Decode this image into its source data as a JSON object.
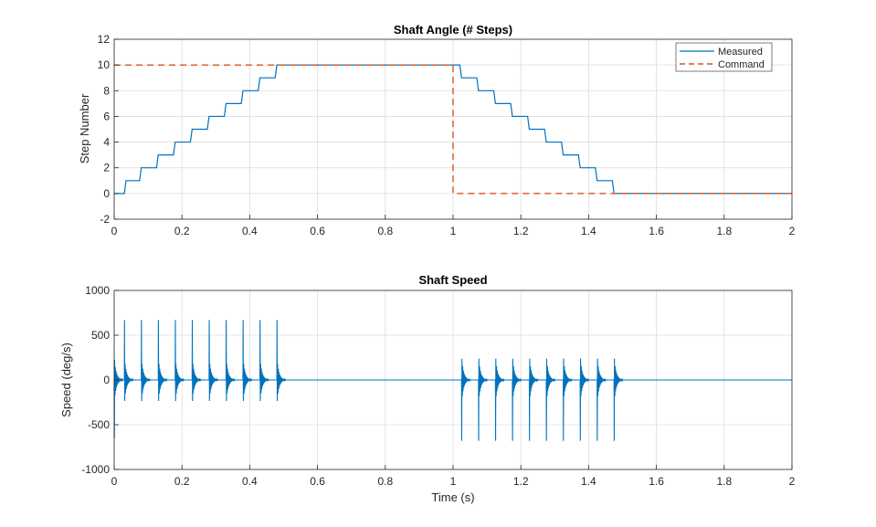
{
  "chart_data": [
    {
      "type": "line",
      "title": "Shaft Angle (# Steps)",
      "xlabel": "",
      "ylabel": "Step Number",
      "xlim": [
        0,
        2
      ],
      "ylim": [
        -2,
        12
      ],
      "xticks": [
        "0",
        "0.2",
        "0.4",
        "0.6",
        "0.8",
        "1",
        "1.2",
        "1.4",
        "1.6",
        "1.8",
        "2"
      ],
      "yticks": [
        "-2",
        "0",
        "2",
        "4",
        "6",
        "8",
        "10",
        "12"
      ],
      "grid": true,
      "legend": "top-right",
      "series": [
        {
          "name": "Measured",
          "color": "#0072BD",
          "style": "solid",
          "x": [
            0,
            0.03,
            0.035,
            0.075,
            0.08,
            0.125,
            0.13,
            0.175,
            0.18,
            0.225,
            0.23,
            0.275,
            0.28,
            0.325,
            0.33,
            0.375,
            0.38,
            0.425,
            0.43,
            0.475,
            0.48,
            1.0,
            1.02,
            1.025,
            1.07,
            1.075,
            1.12,
            1.125,
            1.17,
            1.175,
            1.22,
            1.225,
            1.27,
            1.275,
            1.32,
            1.325,
            1.37,
            1.375,
            1.42,
            1.425,
            1.47,
            1.475,
            2.0
          ],
          "y": [
            0,
            0,
            1,
            1,
            2,
            2,
            3,
            3,
            4,
            4,
            5,
            5,
            6,
            6,
            7,
            7,
            8,
            8,
            9,
            9,
            10,
            10,
            10,
            9,
            9,
            8,
            8,
            7,
            7,
            6,
            6,
            5,
            5,
            4,
            4,
            3,
            3,
            2,
            2,
            1,
            1,
            0,
            0
          ]
        },
        {
          "name": "Command",
          "color": "#D95319",
          "style": "dashed",
          "x": [
            0,
            1.0,
            1.0,
            2.0
          ],
          "y": [
            10,
            10,
            0,
            0
          ]
        }
      ]
    },
    {
      "type": "line",
      "title": "Shaft Speed",
      "xlabel": "Time (s)",
      "ylabel": "Speed (deg/s)",
      "xlim": [
        0,
        2
      ],
      "ylim": [
        -1000,
        1000
      ],
      "xticks": [
        "0",
        "0.2",
        "0.4",
        "0.6",
        "0.8",
        "1",
        "1.2",
        "1.4",
        "1.6",
        "1.8",
        "2"
      ],
      "yticks": [
        "-1000",
        "-500",
        "0",
        "500",
        "1000"
      ],
      "grid": true,
      "series": [
        {
          "color": "#0072BD",
          "baseline": 0,
          "spikes": [
            {
              "t": 0.0,
              "peak": -650
            },
            {
              "t": 0.03,
              "peak": 670
            },
            {
              "t": 0.08,
              "peak": 670
            },
            {
              "t": 0.13,
              "peak": 670
            },
            {
              "t": 0.18,
              "peak": 670
            },
            {
              "t": 0.23,
              "peak": 670
            },
            {
              "t": 0.28,
              "peak": 670
            },
            {
              "t": 0.33,
              "peak": 670
            },
            {
              "t": 0.38,
              "peak": 670
            },
            {
              "t": 0.43,
              "peak": 670
            },
            {
              "t": 0.48,
              "peak": 670
            },
            {
              "t": 1.025,
              "peak": -680
            },
            {
              "t": 1.075,
              "peak": -680
            },
            {
              "t": 1.125,
              "peak": -680
            },
            {
              "t": 1.175,
              "peak": -680
            },
            {
              "t": 1.225,
              "peak": -680
            },
            {
              "t": 1.275,
              "peak": -680
            },
            {
              "t": 1.325,
              "peak": -680
            },
            {
              "t": 1.375,
              "peak": -680
            },
            {
              "t": 1.425,
              "peak": -680
            },
            {
              "t": 1.475,
              "peak": -680
            }
          ]
        }
      ]
    }
  ]
}
